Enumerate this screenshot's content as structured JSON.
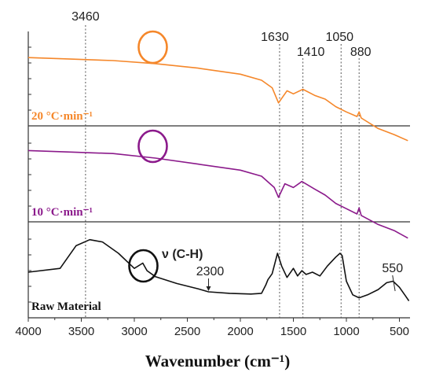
{
  "chart_data": {
    "type": "line",
    "title": "",
    "xlabel": "Wavenumber (cm⁻¹)",
    "ylabel": "",
    "xlim": [
      4000,
      400
    ],
    "x_reversed": true,
    "x_ticks": [
      4000,
      3500,
      3000,
      2500,
      2000,
      1500,
      1000,
      500
    ],
    "grid": false,
    "panels": [
      {
        "label": "20 °C·min⁻¹",
        "color": "#f5872a",
        "points": [
          [
            4000,
            0.8
          ],
          [
            3600,
            0.78
          ],
          [
            3200,
            0.76
          ],
          [
            2800,
            0.72
          ],
          [
            2400,
            0.66
          ],
          [
            2000,
            0.58
          ],
          [
            1800,
            0.5
          ],
          [
            1700,
            0.4
          ],
          [
            1640,
            0.2
          ],
          [
            1560,
            0.36
          ],
          [
            1500,
            0.32
          ],
          [
            1410,
            0.38
          ],
          [
            1300,
            0.3
          ],
          [
            1200,
            0.25
          ],
          [
            1100,
            0.15
          ],
          [
            1000,
            0.08
          ],
          [
            900,
            0.02
          ],
          [
            880,
            0.08
          ],
          [
            860,
            0.0
          ],
          [
            700,
            -0.14
          ],
          [
            550,
            -0.22
          ],
          [
            420,
            -0.3
          ]
        ]
      },
      {
        "label": "10 °C·min⁻¹",
        "color": "#8b1a8b",
        "points": [
          [
            4000,
            0.84
          ],
          [
            3600,
            0.82
          ],
          [
            3200,
            0.8
          ],
          [
            2800,
            0.74
          ],
          [
            2400,
            0.66
          ],
          [
            2000,
            0.58
          ],
          [
            1800,
            0.5
          ],
          [
            1680,
            0.35
          ],
          [
            1640,
            0.22
          ],
          [
            1580,
            0.4
          ],
          [
            1500,
            0.35
          ],
          [
            1420,
            0.43
          ],
          [
            1300,
            0.33
          ],
          [
            1200,
            0.25
          ],
          [
            1100,
            0.14
          ],
          [
            1000,
            0.07
          ],
          [
            900,
            0.0
          ],
          [
            880,
            0.08
          ],
          [
            860,
            -0.02
          ],
          [
            700,
            -0.14
          ],
          [
            550,
            -0.22
          ],
          [
            420,
            -0.32
          ]
        ]
      },
      {
        "label": "Raw Material",
        "color": "#111111",
        "points": [
          [
            4000,
            0.5
          ],
          [
            3700,
            0.55
          ],
          [
            3550,
            0.85
          ],
          [
            3420,
            0.93
          ],
          [
            3300,
            0.9
          ],
          [
            3150,
            0.75
          ],
          [
            3000,
            0.55
          ],
          [
            2920,
            0.62
          ],
          [
            2880,
            0.52
          ],
          [
            2800,
            0.44
          ],
          [
            2600,
            0.35
          ],
          [
            2400,
            0.28
          ],
          [
            2300,
            0.24
          ],
          [
            2100,
            0.22
          ],
          [
            1900,
            0.21
          ],
          [
            1800,
            0.22
          ],
          [
            1760,
            0.33
          ],
          [
            1740,
            0.4
          ],
          [
            1700,
            0.48
          ],
          [
            1650,
            0.75
          ],
          [
            1610,
            0.58
          ],
          [
            1560,
            0.43
          ],
          [
            1500,
            0.55
          ],
          [
            1460,
            0.45
          ],
          [
            1420,
            0.52
          ],
          [
            1380,
            0.47
          ],
          [
            1320,
            0.5
          ],
          [
            1250,
            0.45
          ],
          [
            1180,
            0.58
          ],
          [
            1100,
            0.7
          ],
          [
            1060,
            0.75
          ],
          [
            1040,
            0.72
          ],
          [
            1000,
            0.38
          ],
          [
            940,
            0.2
          ],
          [
            880,
            0.16
          ],
          [
            800,
            0.2
          ],
          [
            700,
            0.27
          ],
          [
            620,
            0.36
          ],
          [
            560,
            0.38
          ],
          [
            500,
            0.3
          ],
          [
            440,
            0.18
          ],
          [
            410,
            0.12
          ]
        ]
      }
    ],
    "reference_lines": [
      3460,
      1630,
      1410,
      1050,
      880
    ],
    "annotations": [
      {
        "text": "3460",
        "x": 3460
      },
      {
        "text": "1630",
        "x": 1630
      },
      {
        "text": "1410",
        "x": 1410
      },
      {
        "text": "1050",
        "x": 1050
      },
      {
        "text": "880",
        "x": 880
      },
      {
        "text": "ν (C-H)",
        "x": 2900
      },
      {
        "text": "2300",
        "x": 2300
      },
      {
        "text": "550",
        "x": 550
      }
    ],
    "highlight_circles": [
      2900,
      2900,
      2900
    ]
  }
}
